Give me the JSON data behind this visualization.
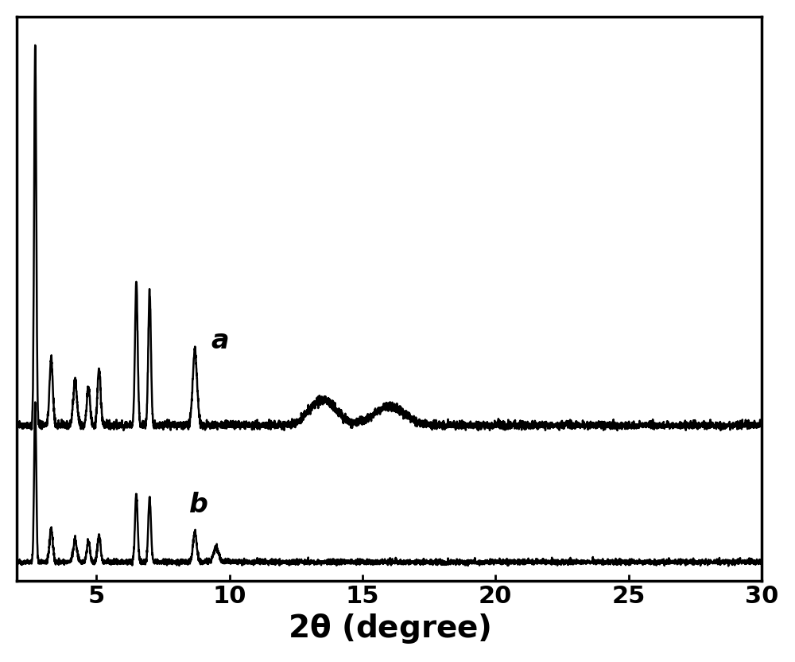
{
  "xlim": [
    2,
    30
  ],
  "ylim_a": [
    0,
    1.0
  ],
  "ylim_b": [
    0,
    1.0
  ],
  "xticks": [
    5,
    10,
    15,
    20,
    25,
    30
  ],
  "xlabel": "2$\\theta$ (degree)",
  "label_a": "a",
  "label_b": "b",
  "background_color": "#ffffff",
  "line_color": "#000000",
  "title_fontsize": 26,
  "xlabel_fontsize": 28,
  "tick_fontsize": 22,
  "label_fontsize": 24,
  "line_width": 1.8,
  "figsize": [
    10.0,
    8.32
  ],
  "dpi": 100
}
